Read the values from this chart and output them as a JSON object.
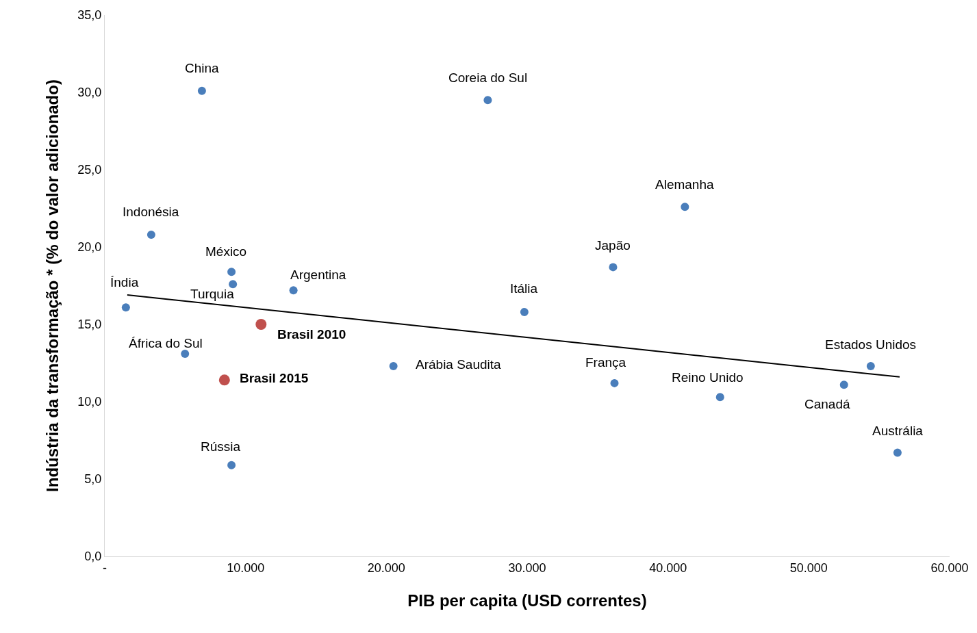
{
  "chart_data": {
    "type": "scatter",
    "xlabel": "PIB per capita (USD correntes)",
    "ylabel": "Indústria da transformação * (% do valor adicionado)",
    "xlim": [
      0,
      60000
    ],
    "xticks": [
      {
        "value": 0,
        "label": "-"
      },
      {
        "value": 10000,
        "label": "10.000"
      },
      {
        "value": 20000,
        "label": "20.000"
      },
      {
        "value": 30000,
        "label": "30.000"
      },
      {
        "value": 40000,
        "label": "40.000"
      },
      {
        "value": 50000,
        "label": "50.000"
      },
      {
        "value": 60000,
        "label": "60.000"
      }
    ],
    "ylim": [
      0,
      35
    ],
    "yticks": [
      {
        "value": 0,
        "label": "0,0"
      },
      {
        "value": 5,
        "label": "5,0"
      },
      {
        "value": 10,
        "label": "10,0"
      },
      {
        "value": 15,
        "label": "15,0"
      },
      {
        "value": 20,
        "label": "20,0"
      },
      {
        "value": 25,
        "label": "25,0"
      },
      {
        "value": 30,
        "label": "30,0"
      },
      {
        "value": 35,
        "label": "35,0"
      }
    ],
    "marker": "circle",
    "series": [
      {
        "color": "#4a7ebb",
        "x": [
          6900,
          27200,
          41200,
          3300,
          36100,
          9000,
          9100,
          13400,
          1500,
          29800,
          5700,
          20500,
          54400,
          36200,
          52500,
          43700,
          56300,
          9000
        ],
        "values": [
          30.1,
          29.5,
          22.6,
          20.8,
          18.7,
          18.4,
          17.6,
          17.2,
          16.1,
          15.8,
          13.1,
          12.3,
          12.3,
          11.2,
          11.1,
          10.3,
          6.7,
          5.9
        ]
      },
      {
        "color": "#c0504d",
        "x": [
          11100,
          8500
        ],
        "values": [
          15.0,
          11.4
        ]
      },
      {
        "type": "line",
        "color": "#000000",
        "marker": "none",
        "x": [
          1600,
          56450
        ],
        "values": [
          16.9,
          11.6
        ]
      }
    ],
    "annotations": [
      {
        "text": "China",
        "x": 6900,
        "y": 30.1
      },
      {
        "text": "Coreia do Sul",
        "x": 27200,
        "y": 29.5
      },
      {
        "text": "Alemanha",
        "x": 41200,
        "y": 22.6
      },
      {
        "text": "Indonésia",
        "x": 3300,
        "y": 20.8
      },
      {
        "text": "Japão",
        "x": 36100,
        "y": 18.7
      },
      {
        "text": "México",
        "x": 9000,
        "y": 18.4
      },
      {
        "text": "Turquia",
        "x": 9100,
        "y": 17.6
      },
      {
        "text": "Argentina",
        "x": 13400,
        "y": 17.2
      },
      {
        "text": "Índia",
        "x": 1500,
        "y": 16.1
      },
      {
        "text": "Itália",
        "x": 29800,
        "y": 15.8
      },
      {
        "text": "África do Sul",
        "x": 5700,
        "y": 13.1
      },
      {
        "text": "Arábia Saudita",
        "x": 20500,
        "y": 12.3
      },
      {
        "text": "Estados Unidos",
        "x": 54400,
        "y": 12.3
      },
      {
        "text": "França",
        "x": 36200,
        "y": 11.2
      },
      {
        "text": "Canadá",
        "x": 52500,
        "y": 11.1
      },
      {
        "text": "Reino Unido",
        "x": 43700,
        "y": 10.3
      },
      {
        "text": "Austrália",
        "x": 56300,
        "y": 6.7
      },
      {
        "text": "Rússia",
        "x": 9000,
        "y": 5.9
      },
      {
        "text": "Brasil 2010",
        "x": 11100,
        "y": 15.0
      },
      {
        "text": "Brasil 2015",
        "x": 8500,
        "y": 11.4
      }
    ]
  }
}
